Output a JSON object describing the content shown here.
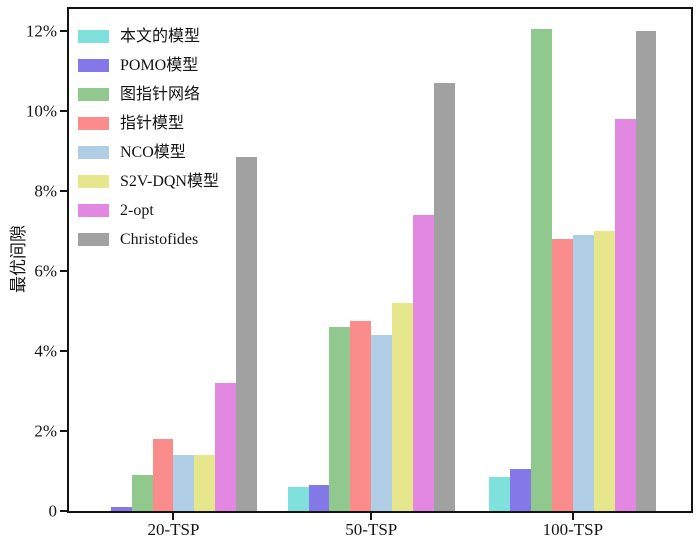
{
  "chart_data": {
    "type": "bar",
    "title": "",
    "xlabel": "",
    "ylabel": "最优间隙",
    "categories": [
      "20-TSP",
      "50-TSP",
      "100-TSP"
    ],
    "series": [
      {
        "name": "本文的模型",
        "color": "#7FE0DC",
        "values": [
          0.0,
          0.6,
          0.85
        ]
      },
      {
        "name": "POMO模型",
        "color": "#8478E8",
        "values": [
          0.1,
          0.65,
          1.05
        ]
      },
      {
        "name": "图指针网络",
        "color": "#90C88E",
        "values": [
          0.9,
          4.6,
          12.05
        ]
      },
      {
        "name": "指针模型",
        "color": "#FA8C8C",
        "values": [
          1.8,
          4.75,
          6.8
        ]
      },
      {
        "name": "NCO模型",
        "color": "#B0CDE6",
        "values": [
          1.4,
          4.4,
          6.9
        ]
      },
      {
        "name": "S2V-DQN模型",
        "color": "#E6E78C",
        "values": [
          1.4,
          5.2,
          7.0
        ]
      },
      {
        "name": "2-opt",
        "color": "#E287E2",
        "values": [
          3.2,
          7.4,
          9.8
        ]
      },
      {
        "name": "Christofides",
        "color": "#A1A1A1",
        "values": [
          8.85,
          10.7,
          12.0
        ]
      }
    ],
    "y_ticks": [
      {
        "value": 0,
        "label": "0"
      },
      {
        "value": 2,
        "label": "2%"
      },
      {
        "value": 4,
        "label": "4%"
      },
      {
        "value": 6,
        "label": "6%"
      },
      {
        "value": 8,
        "label": "8%"
      },
      {
        "value": 10,
        "label": "10%"
      },
      {
        "value": 12,
        "label": "12%"
      }
    ],
    "ylim": [
      0,
      12.55
    ],
    "grid": false,
    "legend_position": "upper-left"
  }
}
